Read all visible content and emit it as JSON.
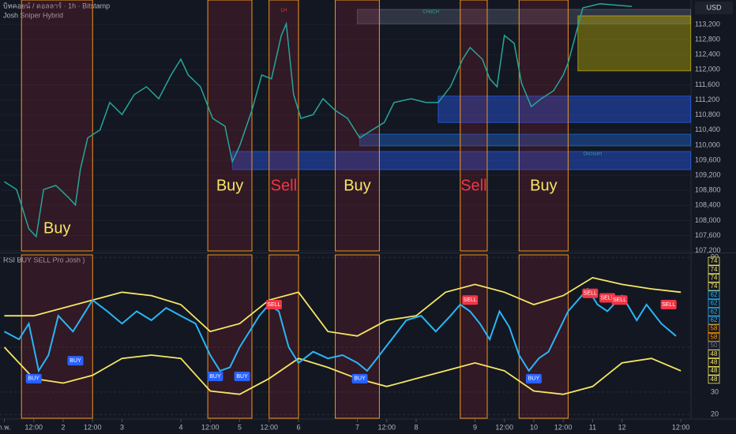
{
  "chart_data": [
    {
      "type": "line",
      "title": "บิทคอยน์ / ดอลลาร์ · 1h · Bitstamp",
      "subtitle": "Josh Sniper Hybrid",
      "currency": "USD",
      "color": "#26a69a",
      "x": [
        0,
        5,
        10,
        13,
        16,
        21,
        26,
        29,
        31,
        34,
        39,
        43,
        48,
        53,
        58,
        63,
        68,
        72,
        75,
        80,
        85,
        90,
        93,
        96,
        101,
        105,
        109,
        113,
        115,
        118,
        121,
        126,
        130,
        135,
        140,
        145,
        150,
        155,
        159,
        166,
        172,
        177,
        182,
        187,
        190,
        195,
        198,
        201,
        204,
        208,
        211,
        215,
        219,
        224,
        228,
        230,
        233,
        236,
        243,
        256
      ],
      "values": [
        109030,
        108820,
        107780,
        107570,
        108820,
        108930,
        108620,
        108410,
        109350,
        110190,
        110400,
        111130,
        110810,
        111340,
        111550,
        111230,
        111860,
        112280,
        111860,
        111550,
        110710,
        110500,
        109560,
        109980,
        110920,
        111860,
        111760,
        112910,
        113220,
        111340,
        110710,
        110810,
        111230,
        110920,
        110710,
        110190,
        110400,
        110600,
        111130,
        111230,
        111130,
        111130,
        111550,
        112280,
        112590,
        112280,
        111760,
        111550,
        112910,
        112700,
        111650,
        111020,
        111230,
        111440,
        111860,
        112180,
        112910,
        113640,
        113750,
        113680
      ],
      "xlim": [
        0,
        280
      ],
      "ylim": [
        107150,
        113850
      ],
      "yticks": [
        {
          "value": 107200,
          "label": "107,200"
        },
        {
          "value": 107600,
          "label": "107,600"
        },
        {
          "value": 108000,
          "label": "108,000"
        },
        {
          "value": 108400,
          "label": "108,400"
        },
        {
          "value": 108800,
          "label": "108,800"
        },
        {
          "value": 109200,
          "label": "109,200"
        },
        {
          "value": 109600,
          "label": "109,600"
        },
        {
          "value": 110000,
          "label": "110,000"
        },
        {
          "value": 110400,
          "label": "110,400"
        },
        {
          "value": 110800,
          "label": "110,800"
        },
        {
          "value": 111200,
          "label": "111,200"
        },
        {
          "value": 111600,
          "label": "111,600"
        },
        {
          "value": 112000,
          "label": "112,000"
        },
        {
          "value": 112400,
          "label": "112,400"
        },
        {
          "value": 112800,
          "label": "112,800"
        },
        {
          "value": 113200,
          "label": "113,200"
        }
      ],
      "zones": [
        {
          "label": "Buy",
          "start": 7,
          "end": 36,
          "color": "#f5e663"
        },
        {
          "label": "Buy",
          "start": 83,
          "end": 101,
          "color": "#f5e663"
        },
        {
          "label": "Sell",
          "start": 108,
          "end": 120,
          "color": "#f23645"
        },
        {
          "label": "Buy",
          "start": 135,
          "end": 153,
          "color": "#f5e663"
        },
        {
          "label": "Sell",
          "start": 186,
          "end": 197,
          "color": "#f23645"
        },
        {
          "label": "Buy",
          "start": 210,
          "end": 230,
          "color": "#f5e663"
        }
      ],
      "boxes": [
        {
          "start": 93,
          "end": 280,
          "low": 109350,
          "high": 109830,
          "color": "#2962ff"
        },
        {
          "start": 145,
          "end": 280,
          "low": 109980,
          "high": 110290,
          "color": "#1e6fe0"
        },
        {
          "start": 177,
          "end": 280,
          "low": 110600,
          "high": 111300,
          "color": "#2962ff"
        },
        {
          "start": 144,
          "end": 280,
          "low": 113220,
          "high": 113600,
          "color": "#5d6475"
        },
        {
          "start": 234,
          "end": 280,
          "low": 111970,
          "high": 113430,
          "color": "#c9b800"
        }
      ],
      "annotations": [
        {
          "text": "CHoCH",
          "x": 174,
          "y": 113540,
          "color": "#26a69a"
        },
        {
          "text": "LH",
          "x": 114,
          "y": 113580,
          "color": "#f23645"
        },
        {
          "text": "Discount",
          "x": 240,
          "y": 109770,
          "color": "#26a69a"
        }
      ]
    },
    {
      "type": "line",
      "title": "RSI BUY SELL Pro Josh )",
      "xlim": [
        0,
        280
      ],
      "ylim": [
        18,
        91.5
      ],
      "yticks": [
        90,
        50,
        30,
        20
      ],
      "xticks": [
        {
          "value": 0,
          "label": "ก.พ."
        },
        {
          "value": 12,
          "label": "12:00"
        },
        {
          "value": 24,
          "label": "2"
        },
        {
          "value": 36,
          "label": "12:00"
        },
        {
          "value": 48,
          "label": "3"
        },
        {
          "value": 72,
          "label": "4"
        },
        {
          "value": 84,
          "label": "12:00"
        },
        {
          "value": 96,
          "label": "5"
        },
        {
          "value": 108,
          "label": "12:00"
        },
        {
          "value": 120,
          "label": "6"
        },
        {
          "value": 144,
          "label": "7"
        },
        {
          "value": 156,
          "label": "12:00"
        },
        {
          "value": 168,
          "label": "8"
        },
        {
          "value": 192,
          "label": "9"
        },
        {
          "value": 204,
          "label": "12:00"
        },
        {
          "value": 216,
          "label": "10"
        },
        {
          "value": 228,
          "label": "12:00"
        },
        {
          "value": 240,
          "label": "11"
        },
        {
          "value": 252,
          "label": "12"
        },
        {
          "value": 276,
          "label": "12:00"
        }
      ],
      "series": [
        {
          "color": "#f5e663",
          "x": [
            0,
            12,
            24,
            36,
            48,
            60,
            72,
            84,
            96,
            108,
            120,
            132,
            144,
            156,
            168,
            180,
            192,
            204,
            216,
            228,
            240,
            252,
            264,
            276
          ],
          "values": [
            64,
            64,
            67.5,
            71,
            74.5,
            73,
            69,
            57,
            60.5,
            71,
            74.5,
            57,
            55,
            62,
            64,
            74.5,
            78,
            74.5,
            69,
            73,
            81,
            78,
            76,
            74.5
          ]
        },
        {
          "color": "#f5e663",
          "x": [
            0,
            12,
            24,
            36,
            48,
            60,
            72,
            84,
            96,
            108,
            120,
            132,
            144,
            156,
            168,
            180,
            192,
            204,
            216,
            228,
            240,
            252,
            264,
            276
          ],
          "values": [
            50,
            36,
            34,
            37.5,
            45,
            46.5,
            45,
            30.5,
            29,
            36,
            45,
            41,
            36,
            32.5,
            36,
            39.5,
            43,
            39.5,
            30.5,
            29,
            32.5,
            43,
            45,
            39.5
          ]
        },
        {
          "color": "#29b6f6",
          "x": [
            0,
            6,
            10,
            14,
            18,
            22,
            28,
            32,
            36,
            42,
            48,
            54,
            60,
            66,
            72,
            78,
            84,
            88,
            92,
            96,
            100,
            104,
            108,
            112,
            116,
            120,
            126,
            132,
            138,
            144,
            148,
            152,
            158,
            164,
            170,
            176,
            182,
            186,
            190,
            194,
            198,
            202,
            206,
            210,
            214,
            218,
            222,
            226,
            230,
            234,
            238,
            242,
            246,
            252,
            258,
            262,
            268,
            274
          ],
          "values": [
            57,
            53.5,
            60.5,
            39.5,
            46.5,
            64,
            57,
            64,
            71,
            66,
            60.5,
            66,
            62,
            67.5,
            64,
            60.5,
            46.5,
            39.5,
            41,
            50,
            57,
            64,
            69,
            66,
            50,
            43,
            48,
            45,
            46.5,
            43,
            39.5,
            45,
            53.5,
            62,
            64,
            57,
            64,
            69,
            66,
            60.5,
            53.5,
            66,
            59,
            46.5,
            39.5,
            45,
            48,
            57,
            66,
            71,
            76,
            69,
            66,
            73,
            62,
            69,
            60.5,
            55
          ]
        }
      ],
      "signals": [
        {
          "label": "BUY",
          "x": 12,
          "y": 36
        },
        {
          "label": "BUY",
          "x": 29,
          "y": 44
        },
        {
          "label": "BUY",
          "x": 86,
          "y": 37
        },
        {
          "label": "BUY",
          "x": 97,
          "y": 37
        },
        {
          "label": "SELL",
          "x": 110,
          "y": 69
        },
        {
          "label": "BUY",
          "x": 145,
          "y": 36
        },
        {
          "label": "SELL",
          "x": 190,
          "y": 71
        },
        {
          "label": "BUY",
          "x": 216,
          "y": 36
        },
        {
          "label": "SELL",
          "x": 239,
          "y": 74
        },
        {
          "label": "SELL",
          "x": 246,
          "y": 72
        },
        {
          "label": "SELL",
          "x": 251,
          "y": 71
        },
        {
          "label": "SELL",
          "x": 271,
          "y": 69
        }
      ],
      "axis_tags": {
        "values": [
          74,
          74,
          74,
          74,
          62,
          62,
          62,
          62,
          58,
          58,
          50,
          48,
          48,
          48,
          48
        ],
        "colors": [
          "#f5e663",
          "#f5e663",
          "#f5e663",
          "#f5e663",
          "#29b6f6",
          "#29b6f6",
          "#29b6f6",
          "#29b6f6",
          "#ff9800",
          "#ff9800",
          "#787b86",
          "#f5e663",
          "#f5e663",
          "#f5e663",
          "#f5e663"
        ]
      }
    }
  ]
}
